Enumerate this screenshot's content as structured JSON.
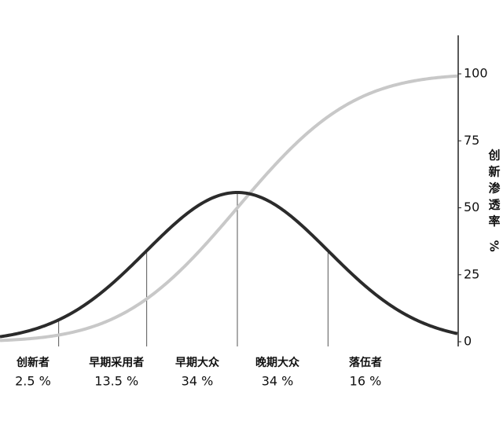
{
  "chart_data": {
    "type": "diffusion",
    "categories": [
      "创新者",
      "早期采用者",
      "早期大众",
      "晚期大众",
      "落伍者"
    ],
    "values": [
      2.5,
      13.5,
      34,
      34,
      16
    ],
    "value_labels": [
      "2.5 %",
      "13.5 %",
      "34 %",
      "34 %",
      "16 %"
    ],
    "ylabel": "创新渗透率 %",
    "ylim": [
      0,
      114
    ],
    "yticks": [
      0,
      25,
      50,
      75,
      100
    ],
    "curve_color": "#2b2b2b",
    "cumulative_color": "#c8c8c8"
  }
}
